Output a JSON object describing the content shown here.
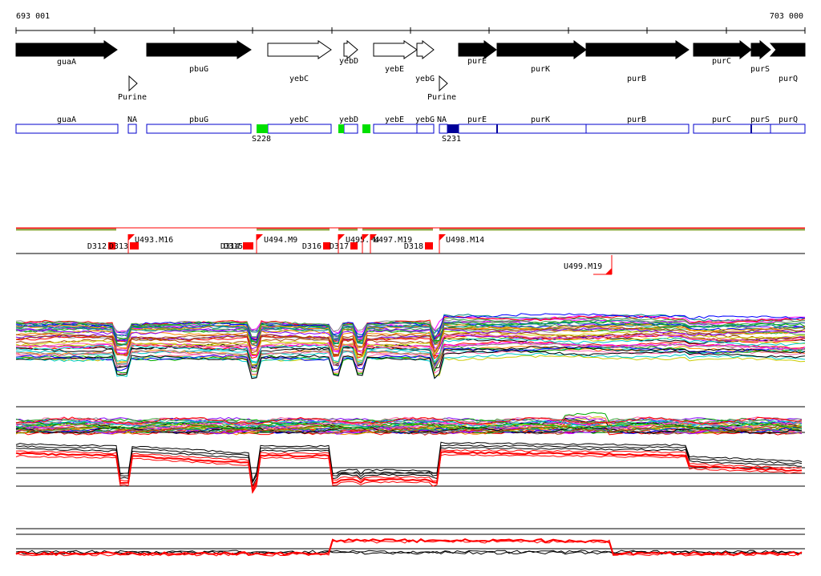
{
  "coords": {
    "start": "693 001",
    "end": "703 000",
    "range": [
      693001,
      703000
    ]
  },
  "colors": {
    "gene_fill": "#000000",
    "gene_outline": "#000000",
    "region_outline": "#0000cc",
    "region_dark": "#000099",
    "marker_green": "#00e000",
    "feature_red": "#ff0000"
  },
  "genes": [
    {
      "name": "guaA",
      "strand": "+",
      "filled": true
    },
    {
      "name": "pbuG",
      "strand": "+",
      "filled": true
    },
    {
      "name": "yebC",
      "strand": "+",
      "filled": false
    },
    {
      "name": "yebD",
      "strand": "+",
      "filled": false
    },
    {
      "name": "yebE",
      "strand": "+",
      "filled": false
    },
    {
      "name": "yebG",
      "strand": "+",
      "filled": false
    },
    {
      "name": "purE",
      "strand": "+",
      "filled": true
    },
    {
      "name": "purK",
      "strand": "+",
      "filled": true
    },
    {
      "name": "purB",
      "strand": "+",
      "filled": true
    },
    {
      "name": "purC",
      "strand": "+",
      "filled": true
    },
    {
      "name": "purS",
      "strand": "+",
      "filled": true
    },
    {
      "name": "purQ",
      "strand": "+",
      "filled": true
    }
  ],
  "riboswitches": [
    {
      "label": "Purine"
    },
    {
      "label": "Purine"
    }
  ],
  "regions": [
    {
      "name": "guaA"
    },
    {
      "name": "NA"
    },
    {
      "name": "pbuG"
    },
    {
      "name": "yebC"
    },
    {
      "name": "yebD"
    },
    {
      "name": "yebE"
    },
    {
      "name": "yebG"
    },
    {
      "name": "NA"
    },
    {
      "name": "purE"
    },
    {
      "name": "purK"
    },
    {
      "name": "purB"
    },
    {
      "name": "purC"
    },
    {
      "name": "purS"
    },
    {
      "name": "purQ"
    }
  ],
  "sites": [
    {
      "label": "S228",
      "color": "#00e000"
    },
    {
      "label": "S231",
      "color": "#000099"
    }
  ],
  "features": [
    {
      "label": "D312",
      "kind": "downshift"
    },
    {
      "label": "D313",
      "kind": "downshift"
    },
    {
      "label": "U493.M16",
      "kind": "upshift"
    },
    {
      "label": "D314",
      "kind": "downshift"
    },
    {
      "label": "D315",
      "kind": "downshift"
    },
    {
      "label": "U494.M9",
      "kind": "upshift"
    },
    {
      "label": "D316",
      "kind": "downshift"
    },
    {
      "label": "D317",
      "kind": "downshift"
    },
    {
      "label": "U495.M4",
      "kind": "upshift"
    },
    {
      "label": "U497.M19",
      "kind": "upshift"
    },
    {
      "label": "D318",
      "kind": "downshift"
    },
    {
      "label": "U498.M14",
      "kind": "upshift"
    },
    {
      "label": "U499.M19",
      "kind": "upshift"
    }
  ]
}
